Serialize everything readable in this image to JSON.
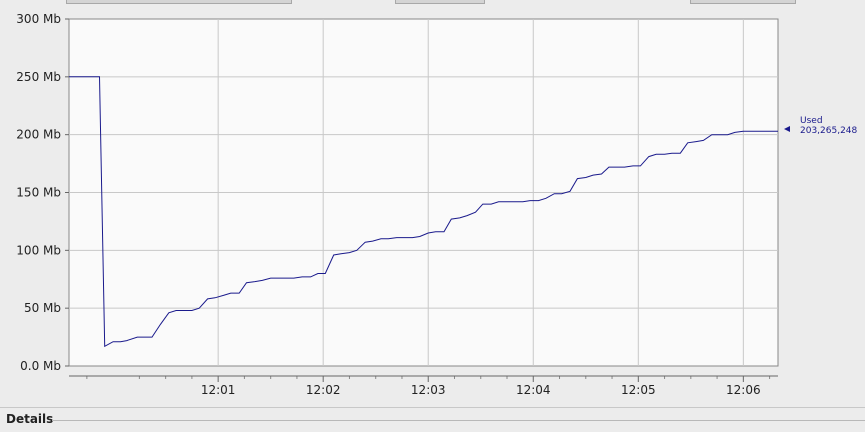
{
  "chart_data": {
    "type": "line",
    "ylim": [
      0,
      300
    ],
    "y_ticks": [
      0,
      50,
      100,
      150,
      200,
      250,
      300
    ],
    "y_tick_labels": [
      "0.0 Mb",
      "50 Mb",
      "100 Mb",
      "150 Mb",
      "200 Mb",
      "250 Mb",
      "300 Mb"
    ],
    "x_range_minutes": [
      -0.42,
      6.33
    ],
    "x_ticks": [
      1,
      2,
      3,
      4,
      5,
      6
    ],
    "x_tick_labels": [
      "12:01",
      "12:02",
      "12:03",
      "12:04",
      "12:05",
      "12:06"
    ],
    "grid": true,
    "line_color": "#1a1a8c",
    "series": [
      {
        "name": "Used",
        "x_minutes": [
          -0.42,
          -0.22,
          -0.15,
          -0.13,
          -0.08,
          0.0,
          0.07,
          0.13,
          0.23,
          0.3,
          0.37,
          0.45,
          0.53,
          0.6,
          0.67,
          0.75,
          0.82,
          0.9,
          0.97,
          1.05,
          1.12,
          1.2,
          1.27,
          1.35,
          1.42,
          1.5,
          1.57,
          1.65,
          1.72,
          1.8,
          1.88,
          1.95,
          2.02,
          2.1,
          2.17,
          2.25,
          2.32,
          2.4,
          2.47,
          2.55,
          2.62,
          2.7,
          2.77,
          2.85,
          2.92,
          3.0,
          3.07,
          3.15,
          3.22,
          3.3,
          3.37,
          3.45,
          3.52,
          3.6,
          3.67,
          3.75,
          3.82,
          3.9,
          3.97,
          4.05,
          4.12,
          4.2,
          4.27,
          4.35,
          4.42,
          4.5,
          4.57,
          4.65,
          4.72,
          4.8,
          4.87,
          4.95,
          5.02,
          5.1,
          5.17,
          5.25,
          5.32,
          5.4,
          5.47,
          5.55,
          5.62,
          5.7,
          5.77,
          5.85,
          5.92,
          6.0,
          6.07,
          6.15,
          6.22,
          6.3,
          6.33
        ],
        "values": [
          250,
          250,
          250,
          250,
          17,
          21,
          21,
          22,
          25,
          25,
          25,
          36,
          46,
          48,
          48,
          48,
          50,
          58,
          59,
          61,
          63,
          63,
          72,
          73,
          74,
          76,
          76,
          76,
          76,
          77,
          77,
          80,
          80,
          96,
          97,
          98,
          100,
          107,
          108,
          110,
          110,
          111,
          111,
          111,
          112,
          115,
          116,
          116,
          127,
          128,
          130,
          133,
          140,
          140,
          142,
          142,
          142,
          142,
          143,
          143,
          145,
          149,
          149,
          151,
          162,
          163,
          165,
          166,
          172,
          172,
          172,
          173,
          173,
          181,
          183,
          183,
          184,
          184,
          193,
          194,
          195,
          200,
          200,
          200,
          202,
          203,
          203,
          203,
          203,
          203,
          203
        ],
        "legend_label": "Used",
        "current_value_label": "203,265,248"
      }
    ]
  },
  "details": {
    "title": "Details"
  }
}
